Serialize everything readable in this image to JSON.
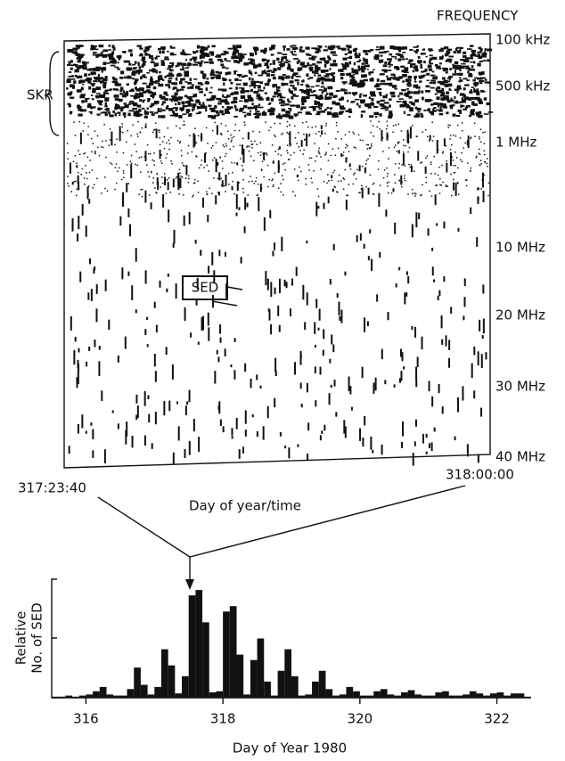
{
  "spectrogram": {
    "frequency_title": "FREQUENCY",
    "frequency_labels": [
      "100 kHz",
      "500 kHz",
      "1 MHz",
      "10 MHz",
      "20 MHz",
      "30 MHz",
      "40 MHz"
    ],
    "skr_label": "SKR",
    "sed_label": "SED",
    "start_time": "317:23:40",
    "end_time": "318:00:00",
    "time_axis_label": "Day of year/time"
  },
  "chart_data": {
    "type": "histogram",
    "ylabel": [
      "Relative",
      "No. of SED"
    ],
    "xlabel": "Day of Year 1980",
    "color": "#111111",
    "bins": [
      315.5,
      315.6,
      315.7,
      315.8,
      315.9,
      316.0,
      316.1,
      316.2,
      316.3,
      316.4,
      316.5,
      316.6,
      316.7,
      316.8,
      316.9,
      317.0,
      317.1,
      317.2,
      317.3,
      317.4,
      317.5,
      317.6,
      317.7,
      317.8,
      317.9,
      318.0,
      318.1,
      318.2,
      318.3,
      318.4,
      318.5,
      318.6,
      318.7,
      318.8,
      318.9,
      319.0,
      319.1,
      319.2,
      319.3,
      319.4,
      319.5,
      319.6,
      319.7,
      319.8,
      319.9,
      320.0,
      320.1,
      320.2,
      320.3,
      320.4,
      320.5,
      320.6,
      320.7,
      320.8,
      320.9,
      321.0,
      321.1,
      321.2,
      321.3,
      321.4,
      321.5,
      321.6,
      321.7,
      321.8,
      321.9,
      322.0,
      322.1,
      322.2,
      322.3,
      322.4,
      322.5
    ],
    "values": [
      1,
      1,
      2,
      1,
      2,
      3,
      6,
      10,
      3,
      2,
      2,
      8,
      28,
      12,
      3,
      10,
      45,
      30,
      4,
      20,
      95,
      100,
      70,
      5,
      6,
      80,
      85,
      40,
      3,
      35,
      55,
      15,
      2,
      25,
      45,
      20,
      2,
      3,
      15,
      25,
      8,
      2,
      3,
      10,
      6,
      2,
      2,
      6,
      8,
      3,
      2,
      5,
      7,
      3,
      2,
      2,
      5,
      6,
      2,
      2,
      3,
      6,
      4,
      2,
      4,
      5,
      2,
      4,
      4,
      1
    ],
    "xlim": [
      315.5,
      322.5
    ],
    "xticks": [
      316,
      318,
      320,
      322
    ],
    "ylim": [
      0,
      110
    ]
  }
}
